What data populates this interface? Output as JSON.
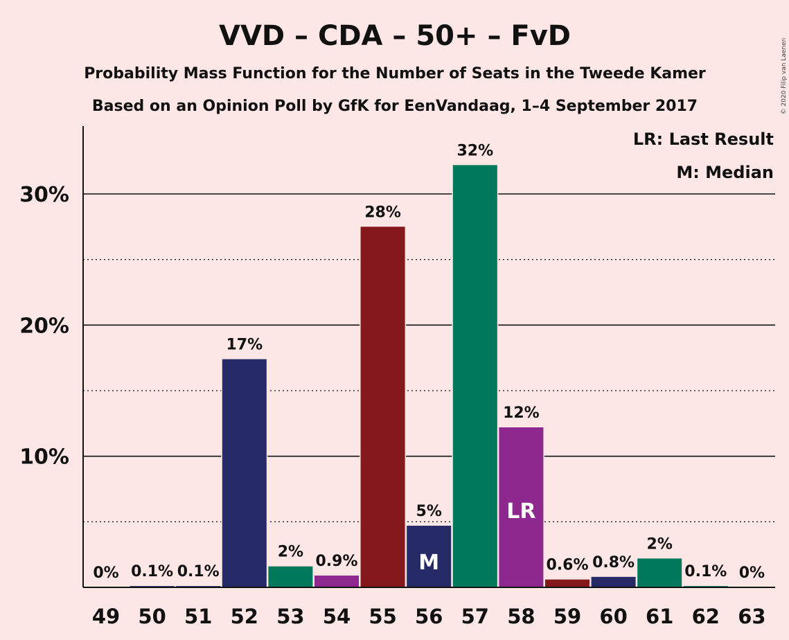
{
  "chart_data": {
    "type": "bar",
    "title": "VVD – CDA – 50+ – FvD",
    "subtitle": "Probability Mass Function for the Number of Seats in the Tweede Kamer",
    "subtitle2": "Based on an Opinion Poll by GfK for EenVandaag, 1–4 September 2017",
    "copyright": "© 2020 Filip van Laenen",
    "legend": [
      "LR: Last Result",
      "M: Median"
    ],
    "legend_position": "top-right",
    "categories": [
      "49",
      "50",
      "51",
      "52",
      "53",
      "54",
      "55",
      "56",
      "57",
      "58",
      "59",
      "60",
      "61",
      "62",
      "63"
    ],
    "values": [
      0,
      0.1,
      0.1,
      17.4,
      1.6,
      0.9,
      27.5,
      4.7,
      32.2,
      12.2,
      0.6,
      0.8,
      2.2,
      0.1,
      0
    ],
    "value_labels": [
      "0%",
      "0.1%",
      "0.1%",
      "17%",
      "2%",
      "0.9%",
      "28%",
      "5%",
      "32%",
      "12%",
      "0.6%",
      "0.8%",
      "2%",
      "0.1%",
      "0%"
    ],
    "colors": [
      "#262B68",
      "#262B68",
      "#262B68",
      "#262B68",
      "#00785A",
      "#8E288E",
      "#84181A",
      "#262B68",
      "#00785A",
      "#8E288E",
      "#84181A",
      "#262B68",
      "#00785A",
      "#00785A",
      "#00785A"
    ],
    "markers": {
      "7": "M",
      "9": "LR"
    },
    "yticks": [
      10,
      20,
      30
    ],
    "ytick_labels": [
      "10%",
      "20%",
      "30%"
    ],
    "minor_grid": [
      5,
      15,
      25
    ],
    "ylim": [
      0,
      35
    ],
    "grid": true
  }
}
